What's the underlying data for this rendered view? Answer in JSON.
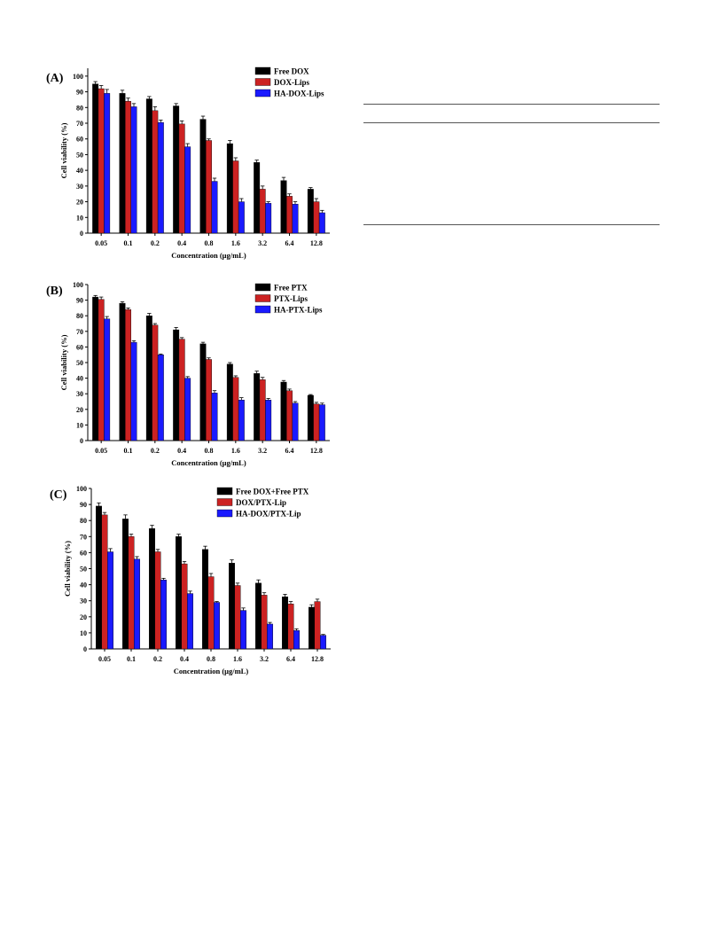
{
  "rules": [
    "",
    "",
    ""
  ],
  "chart_data": [
    {
      "type": "bar",
      "panel_label": "(A)",
      "categories": [
        "0.05",
        "0.1",
        "0.2",
        "0.4",
        "0.8",
        "1.6",
        "3.2",
        "6.4",
        "12.8"
      ],
      "xlabel": "Concentration (μg/mL)",
      "ylabel": "Cell viability (%)",
      "ylim": [
        0,
        105
      ],
      "yticks": [
        0,
        10,
        20,
        30,
        40,
        50,
        60,
        70,
        80,
        90,
        100
      ],
      "legend_position": "top-right",
      "series": [
        {
          "name": "Free DOX",
          "color": "#000000",
          "values": [
            95,
            89,
            85.5,
            81,
            72.5,
            57,
            45,
            33.5,
            28
          ],
          "errors": [
            1.5,
            2,
            1.5,
            1.5,
            2,
            2,
            1.5,
            2,
            1
          ]
        },
        {
          "name": "DOX-Lips",
          "color": "#cc2222",
          "values": [
            92,
            84,
            78,
            69.5,
            59,
            46,
            28,
            23.5,
            20
          ],
          "errors": [
            2,
            2,
            2.5,
            2,
            1,
            2,
            2,
            1.5,
            2
          ]
        },
        {
          "name": "HA-DOX-Lips",
          "color": "#1a1aff",
          "values": [
            89,
            80.5,
            70.5,
            55,
            33,
            20,
            19,
            18.5,
            13
          ],
          "errors": [
            2.5,
            2,
            1.5,
            2,
            2,
            2,
            1,
            1.5,
            1.5
          ]
        }
      ]
    },
    {
      "type": "bar",
      "panel_label": "(B)",
      "categories": [
        "0.05",
        "0.1",
        "0.2",
        "0.4",
        "0.8",
        "1.6",
        "3.2",
        "6.4",
        "12.8"
      ],
      "xlabel": "Concentration (μg/mL)",
      "ylabel": "Cell viability (%)",
      "ylim": [
        0,
        100
      ],
      "yticks": [
        0,
        10,
        20,
        30,
        40,
        50,
        60,
        70,
        80,
        90,
        100
      ],
      "legend_position": "top-right",
      "series": [
        {
          "name": "Free PTX",
          "color": "#000000",
          "values": [
            92,
            88,
            80,
            71,
            62,
            49,
            43,
            37.5,
            29
          ],
          "errors": [
            1,
            1,
            1.5,
            1.5,
            1,
            1,
            1.5,
            1,
            0.5
          ]
        },
        {
          "name": "PTX-Lips",
          "color": "#cc2222",
          "values": [
            90.5,
            84,
            74,
            65,
            52,
            40.5,
            39,
            32,
            23.5
          ],
          "errors": [
            1.5,
            1,
            1,
            1,
            1,
            1,
            1.5,
            1,
            1
          ]
        },
        {
          "name": "HA-PTX-Lips",
          "color": "#1a1aff",
          "values": [
            78,
            63,
            55,
            40,
            30.5,
            26,
            26,
            24,
            23
          ],
          "errors": [
            1.5,
            1,
            0.5,
            1,
            1.5,
            1.5,
            1,
            1,
            1
          ]
        }
      ]
    },
    {
      "type": "bar",
      "panel_label": "(C)",
      "categories": [
        "0.05",
        "0.1",
        "0.2",
        "0.4",
        "0.8",
        "1.6",
        "3.2",
        "6.4",
        "12.8"
      ],
      "xlabel": "Concentration (μg/mL)",
      "ylabel": "Cell viability (%)",
      "ylim": [
        0,
        100
      ],
      "yticks": [
        0,
        10,
        20,
        30,
        40,
        50,
        60,
        70,
        80,
        90,
        100
      ],
      "legend_position": "top-right",
      "series": [
        {
          "name": "Free DOX+Free PTX",
          "color": "#000000",
          "values": [
            89,
            81,
            75,
            70,
            62,
            53.5,
            41,
            32.5,
            26
          ],
          "errors": [
            2,
            2.5,
            2,
            1.5,
            2,
            2,
            2,
            1.5,
            1.5
          ]
        },
        {
          "name": "DOX/PTX-Lip",
          "color": "#cc2222",
          "values": [
            83.5,
            70,
            60.5,
            53,
            45,
            39.5,
            33.5,
            28,
            29.5
          ],
          "errors": [
            1.5,
            1.5,
            1.5,
            1.5,
            2,
            1.5,
            1.5,
            1.5,
            1.5
          ]
        },
        {
          "name": "HA-DOX/PTX-Lip",
          "color": "#1a1aff",
          "values": [
            60.5,
            56,
            43,
            34.5,
            29,
            24,
            15.5,
            11.5,
            8.5
          ],
          "errors": [
            2,
            1.5,
            1,
            1.5,
            0.5,
            1.5,
            1,
            1,
            0.5
          ]
        }
      ]
    }
  ]
}
